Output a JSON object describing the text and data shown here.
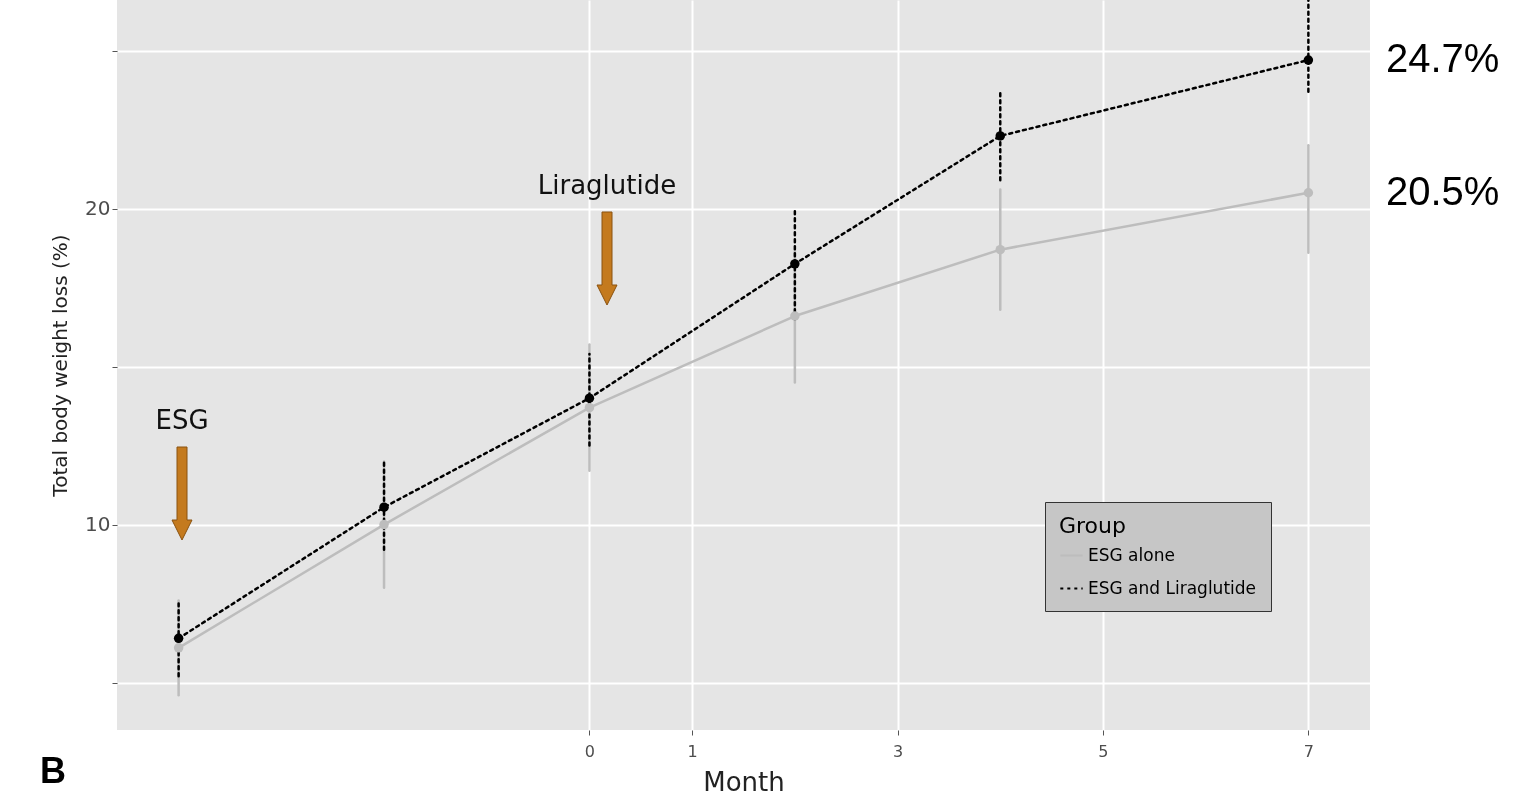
{
  "chart_data": {
    "type": "line",
    "xlabel": "Month",
    "ylabel": "Total body weight loss (%)",
    "legend_title": "Group",
    "x": [
      -4,
      -2,
      0,
      2,
      4,
      7
    ],
    "xlim": [
      -4.6,
      7.6
    ],
    "xticks": [
      0,
      1,
      3,
      5,
      7
    ],
    "ylim": [
      3.5,
      26.6
    ],
    "yticks": [
      {
        "value": 5,
        "label": null
      },
      10,
      {
        "value": 15,
        "label": null
      },
      20,
      {
        "value": 25,
        "label": null
      }
    ],
    "grid": true,
    "legend": "bottom right",
    "marker": "circle",
    "series": [
      {
        "name": "ESG alone",
        "color": "#bdbdbd",
        "line_style": "solid",
        "values": [
          6.1,
          10.0,
          13.7,
          16.6,
          18.7,
          20.5
        ],
        "errors": [
          1.5,
          2,
          2,
          2.1,
          1.9,
          [
            18.6,
            22.0
          ]
        ],
        "value_labels": [
          null,
          null,
          null,
          null,
          null,
          "20.5%"
        ]
      },
      {
        "name": "ESG and Liraglutide",
        "color": "#000000",
        "line_style": "dotted",
        "values": [
          6.4,
          10.55,
          14.0,
          18.25,
          22.3,
          24.7
        ],
        "errors": [
          [
            5.2,
            7.5
          ],
          [
            9.2,
            12.0
          ],
          [
            12.5,
            15.4
          ],
          [
            16.5,
            20.0
          ],
          [
            20.9,
            23.7
          ],
          [
            23.7,
            26.6
          ]
        ],
        "value_labels": [
          null,
          null,
          null,
          null,
          null,
          "24.7%"
        ]
      }
    ],
    "annotations": [
      "ESG",
      "Liraglutide",
      "B"
    ]
  }
}
